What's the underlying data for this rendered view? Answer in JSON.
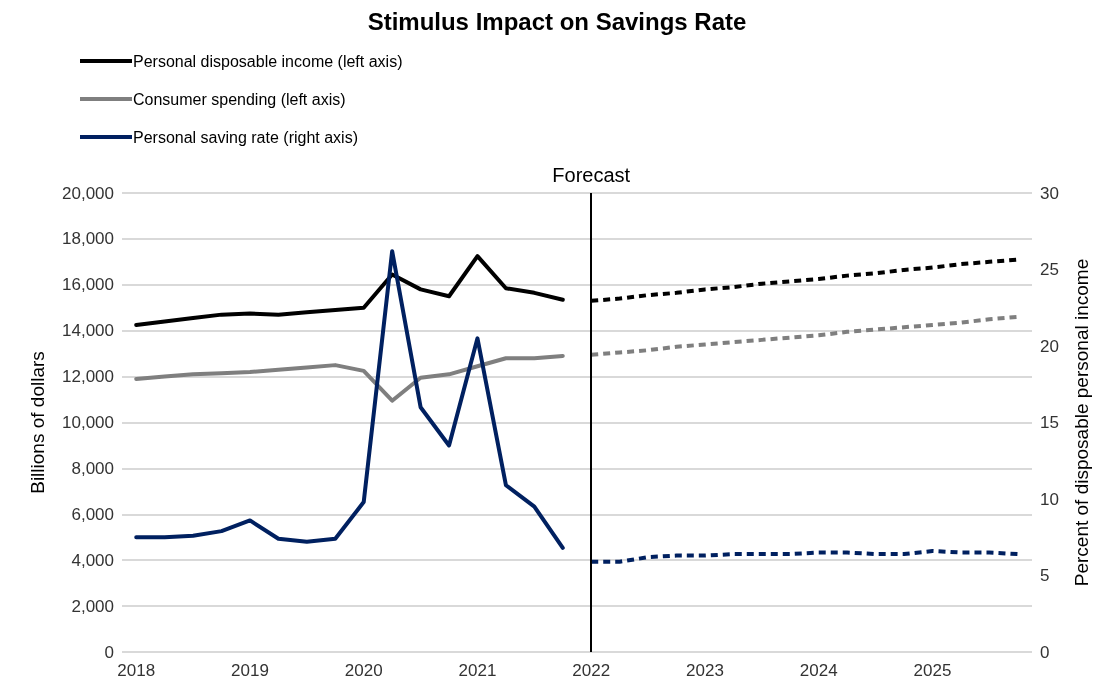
{
  "chart_data": {
    "type": "line",
    "title": "Stimulus Impact on Savings Rate",
    "ylabel": "Billions of dollars",
    "y2label": "Percent of disposable personal income",
    "categories": [
      "2018",
      null,
      null,
      null,
      "2019",
      null,
      null,
      null,
      "2020",
      null,
      null,
      null,
      "2021",
      null,
      null,
      null,
      "2022",
      null,
      null,
      null,
      "2023",
      null,
      null,
      null,
      "2024",
      null,
      null,
      null,
      "2025",
      null,
      null,
      null
    ],
    "series": [
      {
        "name": "Personal disposable income (left axis)",
        "color": "#000000",
        "line_style": "solid",
        "values": [
          14250,
          14400,
          14550,
          14700,
          14750,
          14700,
          14800,
          14900,
          15000,
          16450,
          15800,
          15500,
          17250,
          15850,
          15650,
          15350,
          null,
          null,
          null,
          null,
          null,
          null,
          null,
          null,
          null,
          null,
          null,
          null,
          null,
          null,
          null,
          null
        ]
      },
      {
        "name": "Consumer spending (left axis)",
        "color": "#7f7f7f",
        "line_style": "solid",
        "values": [
          11900,
          12000,
          12100,
          12150,
          12200,
          12300,
          12400,
          12500,
          12250,
          10950,
          11950,
          12100,
          12450,
          12800,
          12800,
          12900,
          null,
          null,
          null,
          null,
          null,
          null,
          null,
          null,
          null,
          null,
          null,
          null,
          null,
          null,
          null,
          null
        ]
      },
      {
        "name": "Personal saving rate (right axis)",
        "color": "#002060",
        "line_style": "solid",
        "axis": "y2",
        "values": [
          7.5,
          7.5,
          7.6,
          7.9,
          8.6,
          7.4,
          7.2,
          7.4,
          9.8,
          26.2,
          16,
          13.5,
          20.5,
          10.9,
          9.5,
          6.8,
          null,
          null,
          null,
          null,
          null,
          null,
          null,
          null,
          null,
          null,
          null,
          null,
          null,
          null,
          null,
          null
        ]
      },
      {
        "color": "#000000",
        "line_style": "dashed",
        "values": [
          null,
          null,
          null,
          null,
          null,
          null,
          null,
          null,
          null,
          null,
          null,
          null,
          null,
          null,
          null,
          null,
          15300,
          15400,
          15550,
          15650,
          15800,
          15900,
          16050,
          16150,
          16250,
          16400,
          16500,
          16650,
          16750,
          16900,
          17000,
          17100
        ]
      },
      {
        "color": "#7f7f7f",
        "line_style": "dashed",
        "values": [
          null,
          null,
          null,
          null,
          null,
          null,
          null,
          null,
          null,
          null,
          null,
          null,
          null,
          null,
          null,
          null,
          12950,
          13050,
          13150,
          13300,
          13400,
          13500,
          13600,
          13700,
          13800,
          13950,
          14050,
          14150,
          14250,
          14350,
          14500,
          14600
        ]
      },
      {
        "color": "#002060",
        "line_style": "dashed",
        "axis": "y2",
        "values": [
          null,
          null,
          null,
          null,
          null,
          null,
          null,
          null,
          null,
          null,
          null,
          null,
          null,
          null,
          null,
          null,
          5.9,
          5.9,
          6.2,
          6.3,
          6.3,
          6.4,
          6.4,
          6.4,
          6.5,
          6.5,
          6.4,
          6.4,
          6.6,
          6.5,
          6.5,
          6.4
        ]
      }
    ],
    "ylim": [
      0,
      20000
    ],
    "yticks": [
      0,
      {
        "value": 2000,
        "label": "2,000"
      },
      {
        "value": 4000,
        "label": "4,000"
      },
      {
        "value": 6000,
        "label": "6,000"
      },
      {
        "value": 8000,
        "label": "8,000"
      },
      {
        "value": 10000,
        "label": "10,000"
      },
      {
        "value": 12000,
        "label": "12,000"
      },
      {
        "value": 14000,
        "label": "14,000"
      },
      {
        "value": 16000,
        "label": "16,000"
      },
      {
        "value": 18000,
        "label": "18,000"
      },
      {
        "value": 20000,
        "label": "20,000"
      }
    ],
    "y2lim": [
      0,
      30
    ],
    "y2ticks": [
      0,
      5,
      10,
      15,
      20,
      25,
      30
    ],
    "ref_lines": [
      {
        "axis": "x",
        "value": "2022",
        "label": "Forecast",
        "color": "#000000"
      }
    ],
    "grid": "y",
    "legend": "top left",
    "marker": "none"
  }
}
